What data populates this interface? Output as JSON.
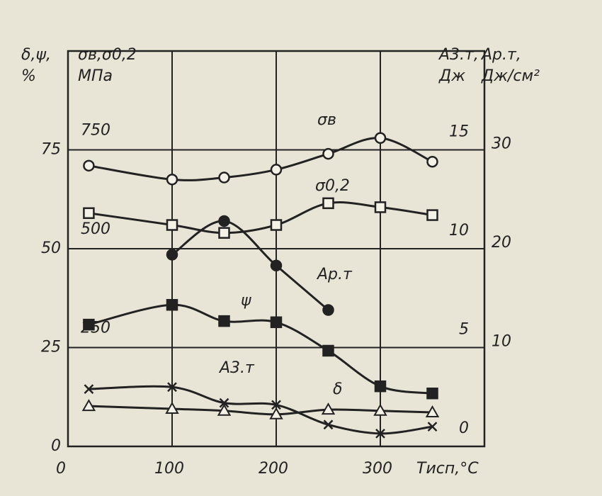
{
  "chart_data": {
    "type": "line",
    "x_label": "Tисп,°C",
    "xlim": [
      0,
      400
    ],
    "xticks": [
      0,
      100,
      200,
      300
    ],
    "x": [
      20,
      100,
      150,
      200,
      250,
      300,
      350
    ],
    "grid": true,
    "y_axes": [
      {
        "label": [
          "δ,ψ,",
          "%"
        ],
        "ylim": [
          0,
          100
        ],
        "yticks": [
          0,
          25,
          50,
          75
        ]
      },
      {
        "label": [
          "σв,σ0,2",
          "МПа"
        ],
        "ylim": [
          0,
          1000
        ],
        "yticks": [
          250,
          500,
          750
        ]
      },
      {
        "label": [
          "A3.т,",
          "Дж"
        ],
        "ylim": [
          0,
          20
        ],
        "yticks": [
          0,
          5,
          10,
          15
        ]
      },
      {
        "label": [
          "Ap.т,",
          "Дж/см²"
        ],
        "ylim": [
          0,
          40
        ],
        "yticks": [
          10,
          20,
          30
        ]
      }
    ],
    "series": [
      {
        "name": "σв",
        "axis": 1,
        "marker": "circle-open",
        "values": [
          710,
          675,
          680,
          700,
          740,
          780,
          720
        ]
      },
      {
        "name": "σ0,2",
        "axis": 1,
        "marker": "square-open",
        "values": [
          590,
          560,
          540,
          560,
          615,
          605,
          585
        ]
      },
      {
        "name": "Ap.т",
        "axis": 3,
        "marker": "circle-filled",
        "x": [
          100,
          150,
          200,
          250
        ],
        "values": [
          19.4,
          22.8,
          18.3,
          13.8
        ]
      },
      {
        "name": "ψ",
        "axis": 0,
        "marker": "square-filled",
        "values": [
          30.8,
          35.8,
          31.7,
          31.4,
          24.2,
          15.2,
          13.4
        ]
      },
      {
        "name": "A3.т",
        "axis": 2,
        "marker": "x",
        "values": [
          2.9,
          3.0,
          2.2,
          2.1,
          1.1,
          0.65,
          1.0
        ]
      },
      {
        "name": "δ",
        "axis": 0,
        "marker": "triangle-open",
        "values": [
          10.2,
          9.5,
          9.0,
          8.1,
          9.3,
          9.0,
          8.6
        ]
      }
    ]
  }
}
